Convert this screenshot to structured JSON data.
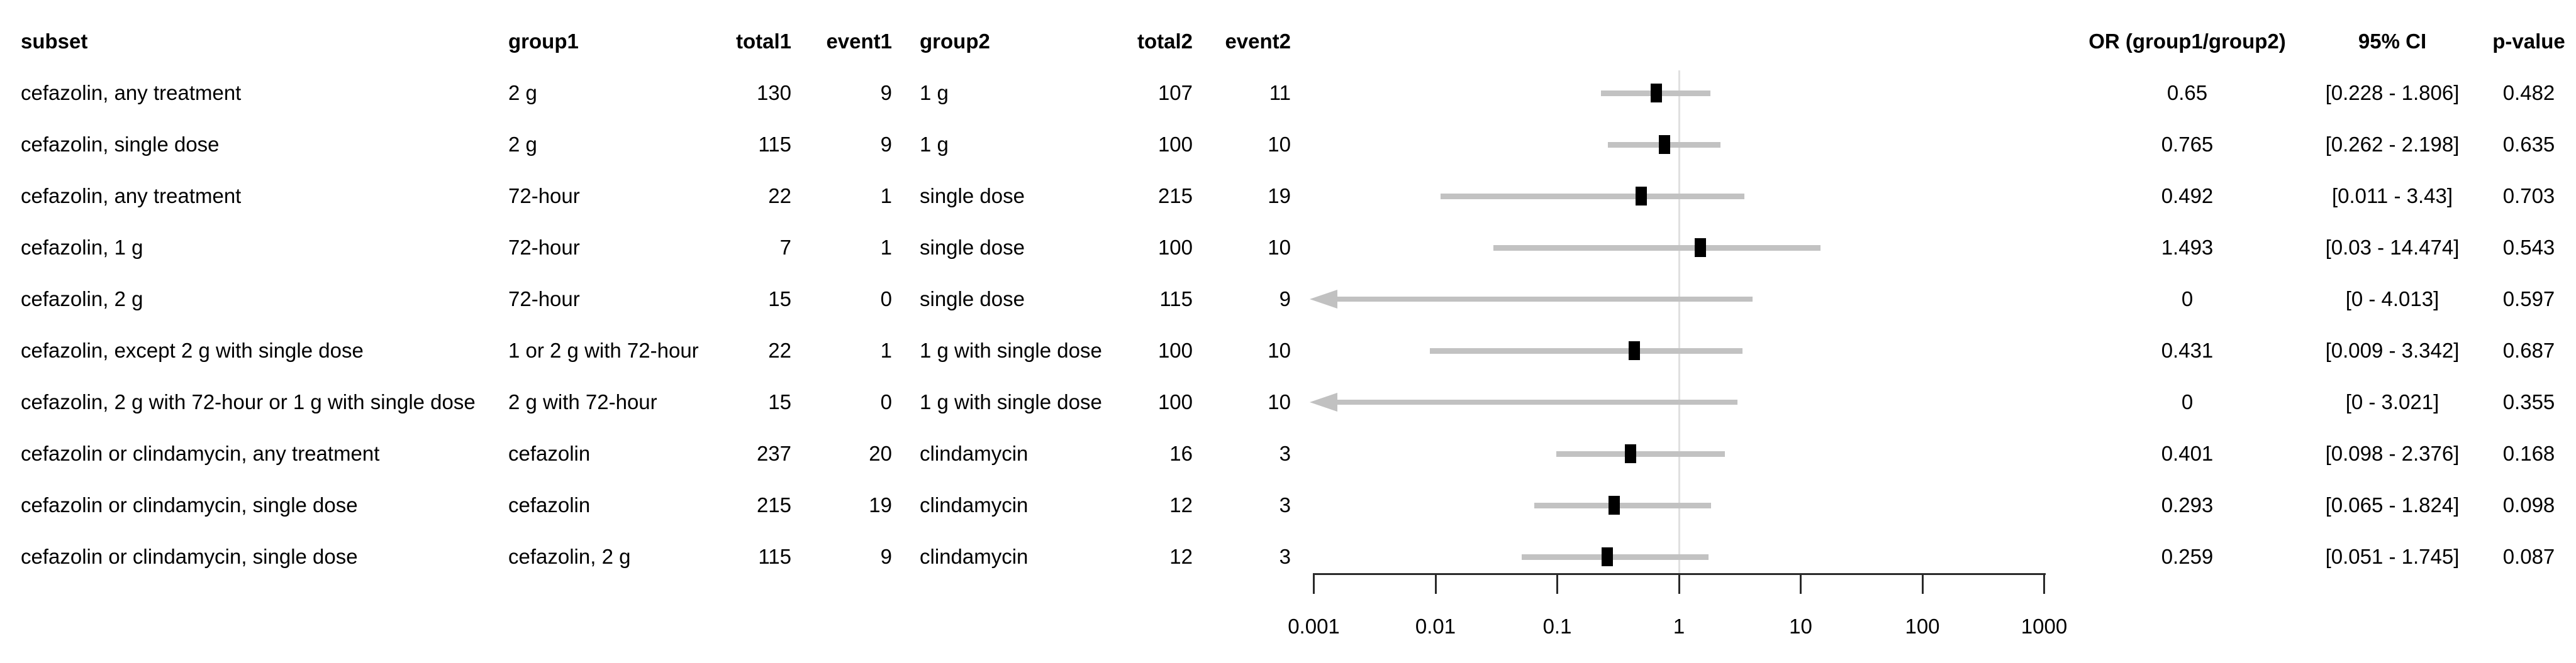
{
  "chart_data": {
    "type": "forest",
    "title": "",
    "x_axis": {
      "scale": "log10",
      "ticks": [
        0.001,
        0.01,
        0.1,
        1,
        10,
        100,
        1000
      ],
      "tick_labels": [
        "0.001",
        "0.01",
        "0.1",
        "1",
        "10",
        "100",
        "1000"
      ],
      "reference_line": 1,
      "range": [
        0.001,
        1000
      ],
      "grid": false
    },
    "columns": [
      {
        "key": "subset",
        "label": "subset",
        "align": "left"
      },
      {
        "key": "group1",
        "label": "group1",
        "align": "left"
      },
      {
        "key": "total1",
        "label": "total1",
        "align": "right"
      },
      {
        "key": "event1",
        "label": "event1",
        "align": "right"
      },
      {
        "key": "group2",
        "label": "group2",
        "align": "left"
      },
      {
        "key": "total2",
        "label": "total2",
        "align": "right"
      },
      {
        "key": "event2",
        "label": "event2",
        "align": "right"
      },
      {
        "key": "or",
        "label": "OR (group1/group2)",
        "align": "center"
      },
      {
        "key": "ci",
        "label": "95% CI",
        "align": "center"
      },
      {
        "key": "p",
        "label": "p-value",
        "align": "center"
      }
    ],
    "rows": [
      {
        "subset": "cefazolin, any treatment",
        "group1": "2 g",
        "total1": "130",
        "event1": "9",
        "group2": "1 g",
        "total2": "107",
        "event2": "11",
        "or": "0.65",
        "or_value": 0.65,
        "ci_low": 0.228,
        "ci_high": 1.806,
        "ci": "[0.228 - 1.806]",
        "p": "0.482",
        "arrow": false
      },
      {
        "subset": "cefazolin, single dose",
        "group1": "2 g",
        "total1": "115",
        "event1": "9",
        "group2": "1 g",
        "total2": "100",
        "event2": "10",
        "or": "0.765",
        "or_value": 0.765,
        "ci_low": 0.262,
        "ci_high": 2.198,
        "ci": "[0.262 - 2.198]",
        "p": "0.635",
        "arrow": false
      },
      {
        "subset": "cefazolin, any treatment",
        "group1": "72-hour",
        "total1": "22",
        "event1": "1",
        "group2": "single dose",
        "total2": "215",
        "event2": "19",
        "or": "0.492",
        "or_value": 0.492,
        "ci_low": 0.011,
        "ci_high": 3.43,
        "ci": "[0.011 - 3.43]",
        "p": "0.703",
        "arrow": false
      },
      {
        "subset": "cefazolin, 1 g",
        "group1": "72-hour",
        "total1": "7",
        "event1": "1",
        "group2": "single dose",
        "total2": "100",
        "event2": "10",
        "or": "1.493",
        "or_value": 1.493,
        "ci_low": 0.03,
        "ci_high": 14.474,
        "ci": "[0.03 - 14.474]",
        "p": "0.543",
        "arrow": false
      },
      {
        "subset": "cefazolin, 2 g",
        "group1": "72-hour",
        "total1": "15",
        "event1": "0",
        "group2": "single dose",
        "total2": "115",
        "event2": "9",
        "or": "0",
        "or_value": 0,
        "ci_low": 0,
        "ci_high": 4.013,
        "ci": "[0 - 4.013]",
        "p": "0.597",
        "arrow": true
      },
      {
        "subset": "cefazolin, except 2 g with single dose",
        "group1": "1 or 2 g with 72-hour",
        "total1": "22",
        "event1": "1",
        "group2": "1 g with single dose",
        "total2": "100",
        "event2": "10",
        "or": "0.431",
        "or_value": 0.431,
        "ci_low": 0.009,
        "ci_high": 3.342,
        "ci": "[0.009 - 3.342]",
        "p": "0.687",
        "arrow": false
      },
      {
        "subset": "cefazolin, 2 g with 72-hour or 1 g with single dose",
        "group1": "2 g with 72-hour",
        "total1": "15",
        "event1": "0",
        "group2": "1 g with single dose",
        "total2": "100",
        "event2": "10",
        "or": "0",
        "or_value": 0,
        "ci_low": 0,
        "ci_high": 3.021,
        "ci": "[0 - 3.021]",
        "p": "0.355",
        "arrow": true
      },
      {
        "subset": "cefazolin or clindamycin, any treatment",
        "group1": "cefazolin",
        "total1": "237",
        "event1": "20",
        "group2": "clindamycin",
        "total2": "16",
        "event2": "3",
        "or": "0.401",
        "or_value": 0.401,
        "ci_low": 0.098,
        "ci_high": 2.376,
        "ci": "[0.098 - 2.376]",
        "p": "0.168",
        "arrow": false
      },
      {
        "subset": "cefazolin or clindamycin, single dose",
        "group1": "cefazolin",
        "total1": "215",
        "event1": "19",
        "group2": "clindamycin",
        "total2": "12",
        "event2": "3",
        "or": "0.293",
        "or_value": 0.293,
        "ci_low": 0.065,
        "ci_high": 1.824,
        "ci": "[0.065 - 1.824]",
        "p": "0.098",
        "arrow": false
      },
      {
        "subset": "cefazolin or clindamycin, single dose",
        "group1": "cefazolin, 2 g",
        "total1": "115",
        "event1": "9",
        "group2": "clindamycin",
        "total2": "12",
        "event2": "3",
        "or": "0.259",
        "or_value": 0.259,
        "ci_low": 0.051,
        "ci_high": 1.745,
        "ci": "[0.051 - 1.745]",
        "p": "0.087",
        "arrow": false
      }
    ]
  },
  "colors": {
    "background": "#ffffff",
    "ci_bar": "#c2c2c2",
    "arrow": "#c1c1c1",
    "marker": "#000000",
    "reference_line": "#e0e0e0",
    "axis": "#2a2a2a",
    "text": "#000000"
  }
}
